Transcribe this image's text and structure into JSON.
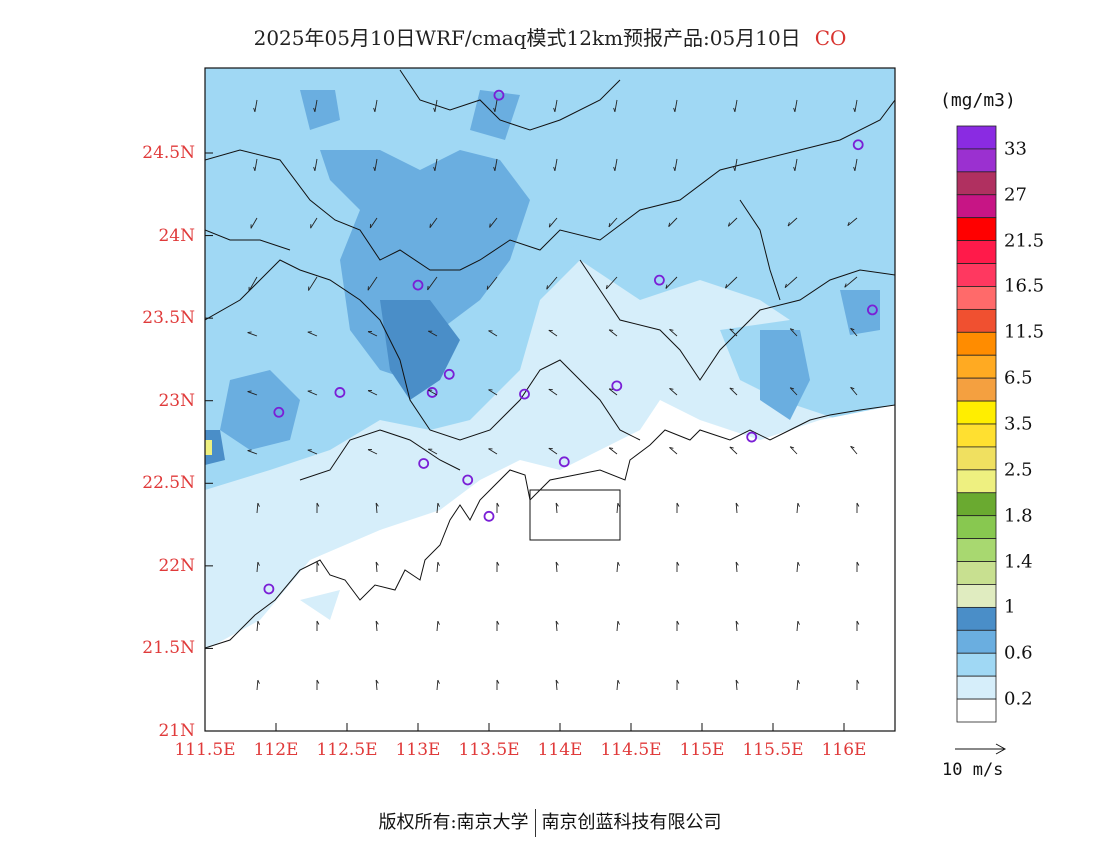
{
  "title": {
    "main": "2025年05月10日WRF/cmaq模式12km预报产品:05月10日",
    "species": "CO"
  },
  "axes": {
    "lat_labels": [
      "24.5N",
      "24N",
      "23.5N",
      "23N",
      "22.5N",
      "22N",
      "21.5N",
      "21N"
    ],
    "lon_labels": [
      "111.5E",
      "112E",
      "112.5E",
      "113E",
      "113.5E",
      "114E",
      "114.5E",
      "115E",
      "115.5E",
      "116E"
    ],
    "lat_values": [
      24.5,
      24,
      23.5,
      23,
      22.5,
      22,
      21.5,
      21
    ],
    "lon_values": [
      111.5,
      112,
      112.5,
      113,
      113.5,
      114,
      114.5,
      115,
      115.5,
      116
    ]
  },
  "legend": {
    "unit": "(mg/m3)",
    "labels": [
      "33",
      "27",
      "21.5",
      "16.5",
      "11.5",
      "6.5",
      "3.5",
      "2.5",
      "1.8",
      "1.4",
      "1",
      "0.6",
      "0.2"
    ],
    "colors_top_to_bottom": [
      "#8a2be2",
      "#9b30d0",
      "#b03060",
      "#c71585",
      "#ff0000",
      "#ff1a4a",
      "#ff3860",
      "#ff6a6a",
      "#f05030",
      "#ff8c00",
      "#ffaa22",
      "#f4a040",
      "#ffee00",
      "#ffe030",
      "#f0e060",
      "#eef080",
      "#6aaa30",
      "#88c850",
      "#a8d870",
      "#c8e090",
      "#e0ecc0",
      "#4a8ec8",
      "#6aaee0",
      "#a0d8f4",
      "#d6eefa",
      "#ffffff"
    ]
  },
  "wind_reference": "10 m/s",
  "footer": {
    "left": "版权所有:南京大学",
    "right": "南京创蓝科技有限公司"
  },
  "stations": [
    {
      "lon": 113.57,
      "lat": 24.85
    },
    {
      "lon": 116.1,
      "lat": 24.55
    },
    {
      "lon": 113.0,
      "lat": 23.7
    },
    {
      "lon": 114.7,
      "lat": 23.73
    },
    {
      "lon": 116.2,
      "lat": 23.55
    },
    {
      "lon": 113.22,
      "lat": 23.16
    },
    {
      "lon": 112.45,
      "lat": 23.05
    },
    {
      "lon": 113.1,
      "lat": 23.05
    },
    {
      "lon": 113.75,
      "lat": 23.04
    },
    {
      "lon": 114.4,
      "lat": 23.09
    },
    {
      "lon": 112.02,
      "lat": 22.93
    },
    {
      "lon": 115.35,
      "lat": 22.78
    },
    {
      "lon": 113.04,
      "lat": 22.62
    },
    {
      "lon": 114.03,
      "lat": 22.63
    },
    {
      "lon": 113.35,
      "lat": 22.52
    },
    {
      "lon": 113.5,
      "lat": 22.3
    },
    {
      "lon": 111.95,
      "lat": 21.86
    }
  ]
}
